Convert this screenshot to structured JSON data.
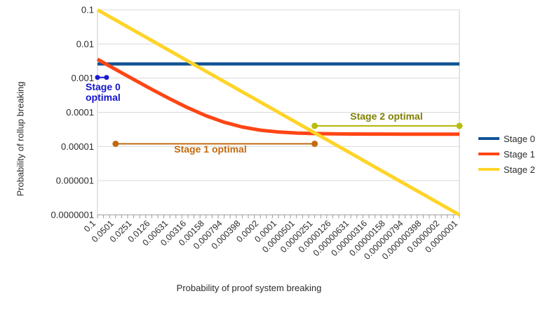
{
  "chart_data": {
    "type": "line",
    "title": "",
    "xlabel": "Probability of proof system breaking",
    "ylabel": "Probability of rollup breaking",
    "x_scale": "log-descending",
    "y_scale": "log",
    "x_range": [
      0.1,
      1e-07
    ],
    "y_range": [
      0.1,
      1e-07
    ],
    "grid": "horizontal",
    "legend_position": "right",
    "x_tick_labels": [
      "0.1",
      "0.0501",
      "0.0251",
      "0.0126",
      "0.00631",
      "0.00316",
      "0.00158",
      "0.000794",
      "0.000398",
      "0.0002",
      "0.0001",
      "0.0000501",
      "0.0000251",
      "0.0000126",
      "0.00000631",
      "0.00000316",
      "0.00000158",
      "0.000000794",
      "0.000000398",
      "0.0000002",
      "0.0000001"
    ],
    "y_tick_labels": [
      "0.1",
      "0.01",
      "0.001",
      "0.0001",
      "0.00001",
      "0.000001",
      "0.0000001"
    ],
    "x": [
      0.1,
      0.0501,
      0.0251,
      0.0126,
      0.00631,
      0.00316,
      0.00158,
      0.000794,
      0.000398,
      0.0002,
      0.0001,
      5.01e-05,
      2.51e-05,
      1.26e-05,
      6.31e-06,
      3.16e-06,
      1.58e-06,
      7.94e-07,
      3.98e-07,
      2e-07,
      1e-07
    ],
    "series": [
      {
        "name": "Stage 0",
        "color": "#0f5394",
        "width": 4.5,
        "values": [
          0.0026,
          0.0026,
          0.0026,
          0.0026,
          0.0026,
          0.0026,
          0.0026,
          0.0026,
          0.0026,
          0.0026,
          0.0026,
          0.0026,
          0.0026,
          0.0026,
          0.0026,
          0.0026,
          0.0026,
          0.0026,
          0.0026,
          0.0026,
          0.0026
        ]
      },
      {
        "name": "Stage 1",
        "color": "#ff4514",
        "width": 5,
        "values": [
          0.00357,
          0.0018,
          0.000914,
          0.00047,
          0.000247,
          0.000135,
          7.91e-05,
          5.12e-05,
          3.71e-05,
          3.01e-05,
          2.66e-05,
          2.48e-05,
          2.39e-05,
          2.34e-05,
          2.32e-05,
          2.31e-05,
          2.31e-05,
          2.3e-05,
          2.3e-05,
          2.3e-05,
          2.3e-05
        ]
      },
      {
        "name": "Stage 2",
        "color": "#ffd428",
        "width": 5,
        "values": [
          0.1,
          0.0501,
          0.0251,
          0.0126,
          0.00631,
          0.00316,
          0.00158,
          0.000794,
          0.000398,
          0.0002,
          0.0001,
          5.01e-05,
          2.51e-05,
          1.26e-05,
          6.31e-06,
          3.16e-06,
          1.58e-06,
          7.94e-07,
          3.98e-07,
          2e-07,
          1e-07
        ]
      }
    ],
    "annotations": [
      {
        "id": "stage-0-optimal",
        "label": "Stage 0\noptimal",
        "x_start": 0.1,
        "x_end": 0.0708,
        "y": 0.00105,
        "line_color": "#1a1ad1",
        "dot_color": "#1a1ad1",
        "text_color": "#1414cc",
        "dot_radius": 3.5
      },
      {
        "id": "stage-1-optimal",
        "label": "Stage 1 optimal",
        "x_start": 0.0501,
        "x_end": 2.51e-05,
        "y": 1.2e-05,
        "line_color": "#c2690f",
        "dot_color": "#c2690f",
        "text_color": "#c2690f",
        "dot_radius": 4.5
      },
      {
        "id": "stage-2-optimal",
        "label": "Stage 2 optimal",
        "x_start": 2.51e-05,
        "x_end": 1e-07,
        "y": 4e-05,
        "line_color": "#b3b300",
        "dot_color": "#b9bd12",
        "text_color": "#7f7f00",
        "dot_radius": 4.5
      }
    ],
    "colors": {
      "gridline": "#d9d9d9",
      "axis": "#9b9b9b",
      "plot_border": "#c8c8c8",
      "tick_label": "#2b2b2b"
    }
  }
}
